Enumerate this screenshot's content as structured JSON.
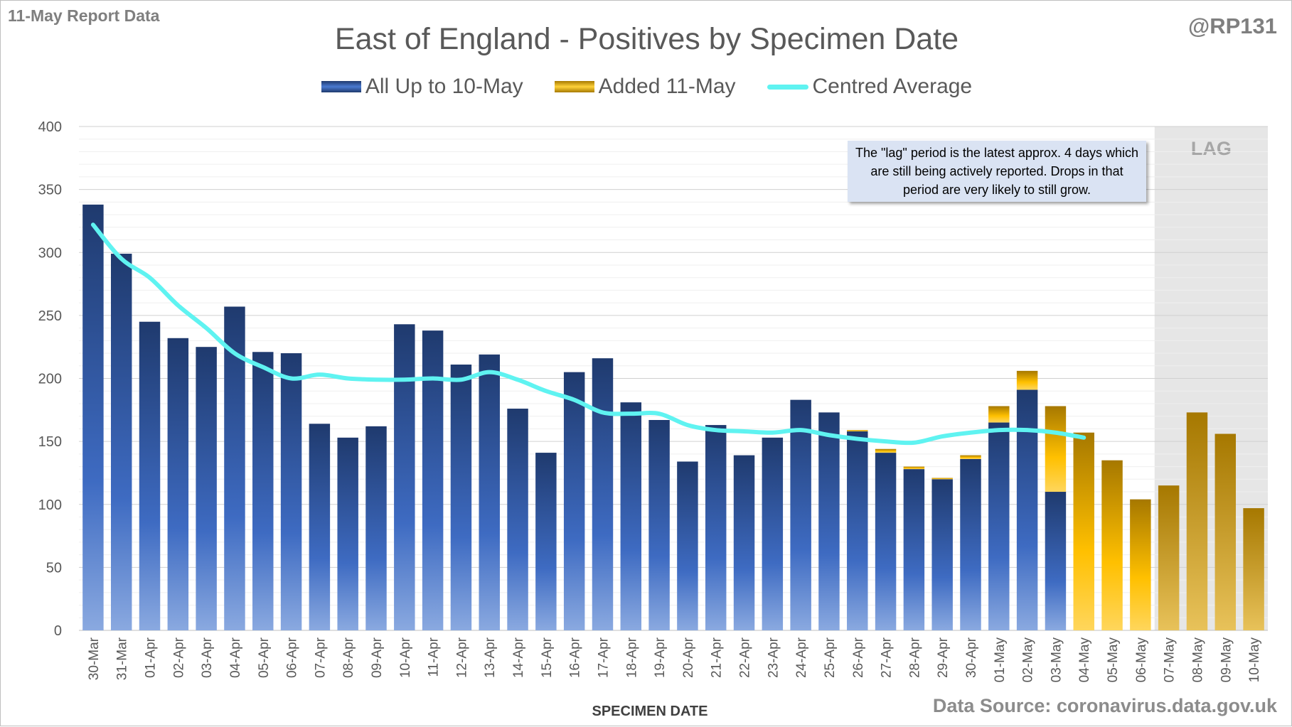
{
  "header": {
    "report_label": "11-May Report Data",
    "handle": "@RP131"
  },
  "source_text": "Data Source: coronavirus.data.gov.uk",
  "annotation_text": "The \"lag\" period is the latest approx. 4 days which are still being actively reported. Drops in that period are very likely to still grow.",
  "colors": {
    "existing_bar": "#2f528f",
    "added_bar": "#ffc000",
    "average_line": "#5ff3f1",
    "lag_shade": "#e6e6e6"
  },
  "chart_data": {
    "type": "bar",
    "title": "East of England - Positives by Specimen Date",
    "xlabel": "SPECIMEN DATE",
    "ylabel": "",
    "ylim": [
      0,
      400
    ],
    "yticks": [
      0,
      50,
      100,
      150,
      200,
      250,
      300,
      350,
      400
    ],
    "stacked": true,
    "legend_position": "top",
    "grid": true,
    "lag_label": "LAG",
    "lag_start_category": "07-May",
    "categories": [
      "30-Mar",
      "31-Mar",
      "01-Apr",
      "02-Apr",
      "03-Apr",
      "04-Apr",
      "05-Apr",
      "06-Apr",
      "07-Apr",
      "08-Apr",
      "09-Apr",
      "10-Apr",
      "11-Apr",
      "12-Apr",
      "13-Apr",
      "14-Apr",
      "15-Apr",
      "16-Apr",
      "17-Apr",
      "18-Apr",
      "19-Apr",
      "20-Apr",
      "21-Apr",
      "22-Apr",
      "23-Apr",
      "24-Apr",
      "25-Apr",
      "26-Apr",
      "27-Apr",
      "28-Apr",
      "29-Apr",
      "30-Apr",
      "01-May",
      "02-May",
      "03-May",
      "04-May",
      "05-May",
      "06-May",
      "07-May",
      "08-May",
      "09-May",
      "10-May"
    ],
    "series": [
      {
        "name": "All Up to 10-May",
        "kind": "bar",
        "values": [
          338,
          299,
          245,
          232,
          225,
          257,
          221,
          220,
          164,
          153,
          162,
          243,
          238,
          211,
          219,
          176,
          141,
          205,
          216,
          181,
          167,
          134,
          163,
          139,
          153,
          183,
          173,
          158,
          141,
          128,
          120,
          136,
          165,
          191,
          110,
          0,
          0,
          0,
          0,
          0,
          0,
          0
        ]
      },
      {
        "name": "Added 11-May",
        "kind": "bar",
        "values": [
          0,
          0,
          0,
          0,
          0,
          0,
          0,
          0,
          0,
          0,
          0,
          0,
          0,
          0,
          0,
          0,
          0,
          0,
          0,
          0,
          0,
          0,
          0,
          0,
          0,
          0,
          0,
          1,
          3,
          2,
          1,
          3,
          13,
          15,
          68,
          157,
          135,
          104,
          115,
          173,
          156,
          97
        ]
      },
      {
        "name": "Centred Average",
        "kind": "line",
        "values": [
          322,
          295,
          280,
          258,
          240,
          220,
          209,
          200,
          203,
          200,
          199,
          199,
          200,
          199,
          205,
          199,
          190,
          183,
          173,
          172,
          172,
          163,
          159,
          158,
          157,
          159,
          155,
          152,
          150,
          149,
          154,
          157,
          159,
          159,
          157,
          153,
          null,
          null,
          null,
          null,
          null,
          null
        ]
      }
    ]
  }
}
